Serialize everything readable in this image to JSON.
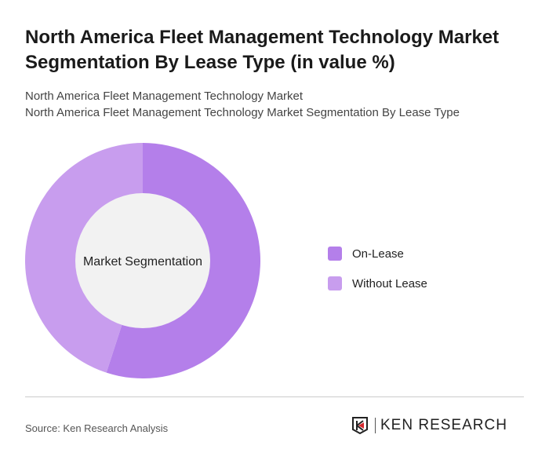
{
  "title": "North America Fleet Management Technology Market Segmentation By Lease Type (in value %)",
  "subtitle1": "North America Fleet Management Technology Market",
  "subtitle2": "North America Fleet Management Technology Market Segmentation By Lease Type",
  "source": "Source: Ken Research Analysis",
  "logo_text": "KEN RESEARCH",
  "chart_data": {
    "type": "pie",
    "variant": "donut",
    "center_label": "Market Segmentation",
    "categories": [
      "On-Lease",
      "Without Lease"
    ],
    "values": [
      55,
      45
    ],
    "colors": [
      "#b47fea",
      "#c89dee"
    ],
    "legend_position": "right"
  }
}
